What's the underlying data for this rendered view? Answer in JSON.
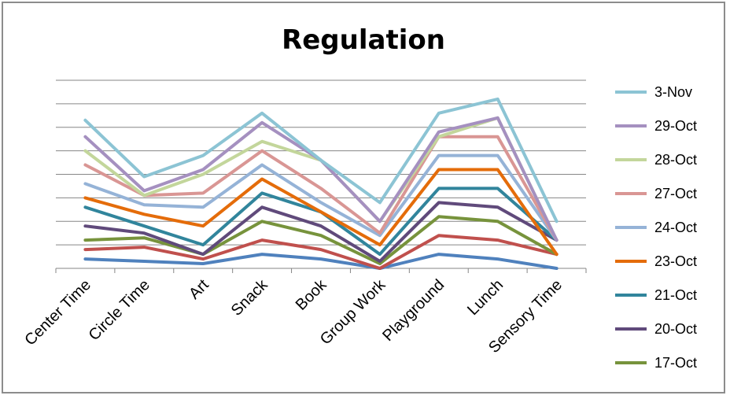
{
  "chart_data": {
    "type": "line",
    "title": "Regulation",
    "xlabel": "",
    "ylabel": "",
    "categories": [
      "Center Time",
      "Circle Time",
      "Art",
      "Snack",
      "Book",
      "Group Work",
      "Playground",
      "Lunch",
      "Sensory Time"
    ],
    "ylim": [
      0,
      8
    ],
    "y_gridlines": 8,
    "grid": true,
    "legend": "right",
    "series": [
      {
        "name": "3-Nov",
        "color": "#8cc4d4",
        "values": [
          6.3,
          3.9,
          4.8,
          6.6,
          4.6,
          2.8,
          6.6,
          7.2,
          2.0
        ]
      },
      {
        "name": "29-Oct",
        "color": "#a590c0",
        "values": [
          5.6,
          3.3,
          4.2,
          6.2,
          4.6,
          2.0,
          5.8,
          6.4,
          1.2
        ]
      },
      {
        "name": "28-Oct",
        "color": "#c3d69b",
        "values": [
          5.0,
          3.1,
          4.0,
          5.4,
          4.6,
          2.0,
          5.6,
          6.4,
          1.2
        ]
      },
      {
        "name": "27-Oct",
        "color": "#d99694",
        "values": [
          4.4,
          3.1,
          3.2,
          5.0,
          3.4,
          1.5,
          5.6,
          5.6,
          1.2
        ]
      },
      {
        "name": "24-Oct",
        "color": "#95b3d7",
        "values": [
          3.6,
          2.7,
          2.6,
          4.4,
          2.8,
          1.4,
          4.8,
          4.8,
          1.2
        ]
      },
      {
        "name": "23-Oct",
        "color": "#e46c0a",
        "values": [
          3.0,
          2.3,
          1.8,
          3.8,
          2.4,
          1.0,
          4.2,
          4.2,
          0.6
        ]
      },
      {
        "name": "21-Oct",
        "color": "#31859c",
        "values": [
          2.6,
          1.8,
          1.0,
          3.2,
          2.4,
          0.6,
          3.4,
          3.4,
          1.2
        ]
      },
      {
        "name": "20-Oct",
        "color": "#604a7b",
        "values": [
          1.8,
          1.5,
          0.6,
          2.6,
          1.8,
          0.3,
          2.8,
          2.6,
          1.2
        ]
      },
      {
        "name": "17-Oct",
        "color": "#77933c",
        "values": [
          1.2,
          1.3,
          0.6,
          2.0,
          1.4,
          0.2,
          2.2,
          2.0,
          0.6
        ]
      },
      {
        "name": "",
        "color": "#c0504d",
        "values": [
          0.8,
          0.9,
          0.4,
          1.2,
          0.8,
          0.0,
          1.4,
          1.2,
          0.6
        ]
      },
      {
        "name": "",
        "color": "#4f81bd",
        "values": [
          0.4,
          0.3,
          0.2,
          0.6,
          0.4,
          0.0,
          0.6,
          0.4,
          0.0
        ]
      }
    ]
  }
}
